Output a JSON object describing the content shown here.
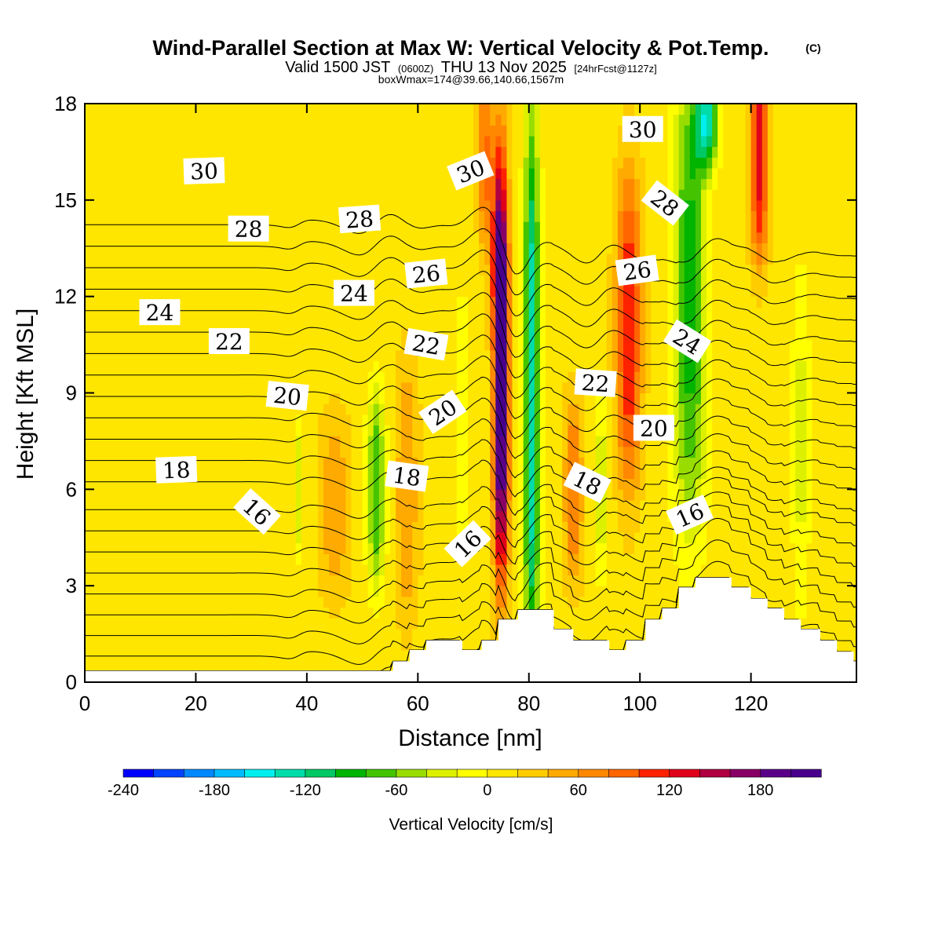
{
  "title": {
    "main": "Wind-Parallel Section at Max W: Vertical Velocity & Pot.Temp.",
    "copyright": "(C)",
    "valid_prefix": "Valid 1500 JST",
    "valid_utc": "(0600Z)",
    "valid_date": "THU 13 Nov 2025",
    "forecast": "[24hrFcst@1127z]",
    "box": "boxWmax=174@39.66,140.66,1567m"
  },
  "chart_data": {
    "type": "heatmap",
    "xlabel": "Distance [nm]",
    "ylabel": "Height [Kft MSL]",
    "xlim": [
      0,
      139
    ],
    "ylim": [
      0,
      18
    ],
    "x_ticks": [
      0,
      20,
      40,
      60,
      80,
      100,
      120
    ],
    "y_ticks": [
      0,
      3,
      6,
      9,
      12,
      15,
      18
    ],
    "colorbar": {
      "label": "Vertical Velocity [cm/s]",
      "min": -240,
      "max": 220,
      "step": 20,
      "tick_values": [
        -240,
        -180,
        -120,
        -60,
        0,
        60,
        120,
        180
      ],
      "tick_labels": [
        "-240",
        "-180",
        "-120",
        "-60",
        "0",
        "60",
        "120",
        "180"
      ],
      "colors": [
        "#0000ff",
        "#0044ff",
        "#0088ff",
        "#00bbff",
        "#00eeee",
        "#00dcaa",
        "#00c864",
        "#00b400",
        "#44c400",
        "#99dd00",
        "#ddf000",
        "#ffff00",
        "#ffe600",
        "#ffcc00",
        "#ffaa00",
        "#ff8800",
        "#ff6600",
        "#ff2200",
        "#e0001a",
        "#b00040",
        "#880066",
        "#5a0088",
        "#48008c"
      ]
    },
    "velocity_features": [
      {
        "x": 75,
        "z_center": 9.0,
        "z_half": 6.0,
        "width": 1.3,
        "peak": 220
      },
      {
        "x": 74.5,
        "z_center": 14.5,
        "z_half": 3.5,
        "width": 1.5,
        "peak": 80
      },
      {
        "x": 80.5,
        "z_center": 9.0,
        "z_half": 9.0,
        "width": 1.4,
        "peak": -150
      },
      {
        "x": 52.5,
        "z_center": 6.0,
        "z_half": 3.2,
        "width": 1.6,
        "peak": -90
      },
      {
        "x": 58,
        "z_center": 6.0,
        "z_half": 4.0,
        "width": 2.0,
        "peak": 50
      },
      {
        "x": 45,
        "z_center": 5.5,
        "z_half": 3.0,
        "width": 2.5,
        "peak": 45
      },
      {
        "x": 38.5,
        "z_center": 6.0,
        "z_half": 2.2,
        "width": 0.8,
        "peak": -50
      },
      {
        "x": 68,
        "z_center": 8.0,
        "z_half": 4.0,
        "width": 1.0,
        "peak": -40
      },
      {
        "x": 98,
        "z_center": 11.0,
        "z_half": 5.0,
        "width": 2.2,
        "peak": 110
      },
      {
        "x": 88,
        "z_center": 6.0,
        "z_half": 3.0,
        "width": 1.6,
        "peak": 70
      },
      {
        "x": 93,
        "z_center": 6.0,
        "z_half": 2.8,
        "width": 1.0,
        "peak": -50
      },
      {
        "x": 109,
        "z_center": 12.0,
        "z_half": 7.5,
        "width": 3.0,
        "peak": -100
      },
      {
        "x": 112,
        "z_center": 17.5,
        "z_half": 1.5,
        "width": 2.0,
        "peak": -130
      },
      {
        "x": 121.5,
        "z_center": 16.5,
        "z_half": 3.5,
        "width": 1.6,
        "peak": 120
      },
      {
        "x": 129,
        "z_center": 7.5,
        "z_half": 5.5,
        "width": 1.5,
        "peak": -40
      },
      {
        "x": 72,
        "z_center": 16.5,
        "z_half": 3.0,
        "width": 1.2,
        "peak": 70
      }
    ],
    "terrain": [
      [
        0,
        0.35
      ],
      [
        55,
        0.35
      ],
      [
        55.5,
        0.65
      ],
      [
        58,
        0.65
      ],
      [
        58.5,
        1.0
      ],
      [
        61,
        1.0
      ],
      [
        61.5,
        1.3
      ],
      [
        67,
        1.3
      ],
      [
        68,
        1.0
      ],
      [
        71,
        1.0
      ],
      [
        71.5,
        1.3
      ],
      [
        74,
        1.3
      ],
      [
        74.5,
        1.95
      ],
      [
        77.5,
        1.95
      ],
      [
        78,
        2.25
      ],
      [
        84,
        2.25
      ],
      [
        84.5,
        1.65
      ],
      [
        87.5,
        1.65
      ],
      [
        88,
        1.3
      ],
      [
        94,
        1.3
      ],
      [
        94.5,
        1.0
      ],
      [
        97,
        1.0
      ],
      [
        97.5,
        1.3
      ],
      [
        100.5,
        1.3
      ],
      [
        101,
        1.95
      ],
      [
        103.5,
        1.95
      ],
      [
        104,
        2.3
      ],
      [
        106.5,
        2.3
      ],
      [
        107,
        2.95
      ],
      [
        109.5,
        2.95
      ],
      [
        110,
        3.25
      ],
      [
        116,
        3.25
      ],
      [
        116.5,
        2.95
      ],
      [
        119.5,
        2.95
      ],
      [
        120,
        2.6
      ],
      [
        122.5,
        2.6
      ],
      [
        123,
        2.3
      ],
      [
        125.5,
        2.3
      ],
      [
        126,
        1.95
      ],
      [
        128.5,
        1.95
      ],
      [
        129,
        1.65
      ],
      [
        132,
        1.65
      ],
      [
        132.5,
        1.3
      ],
      [
        135,
        1.3
      ],
      [
        135.5,
        0.95
      ],
      [
        138,
        0.95
      ],
      [
        138.5,
        0.65
      ],
      [
        139,
        0.65
      ]
    ],
    "theta_contours": {
      "min": 10,
      "max": 33,
      "step": 1,
      "labels": [
        {
          "text": "30",
          "x": 21.5,
          "z": 15.9,
          "angle": -2
        },
        {
          "text": "30",
          "x": 69.5,
          "z": 15.9,
          "angle": -22
        },
        {
          "text": "30",
          "x": 100.5,
          "z": 17.2,
          "angle": 0
        },
        {
          "text": "28",
          "x": 29.5,
          "z": 14.1,
          "angle": 0
        },
        {
          "text": "28",
          "x": 49.5,
          "z": 14.4,
          "angle": -4
        },
        {
          "text": "28",
          "x": 104.5,
          "z": 14.9,
          "angle": 38
        },
        {
          "text": "26",
          "x": 61.5,
          "z": 12.7,
          "angle": -6
        },
        {
          "text": "26",
          "x": 99.5,
          "z": 12.8,
          "angle": -8
        },
        {
          "text": "24",
          "x": 13.5,
          "z": 11.5,
          "angle": 0
        },
        {
          "text": "24",
          "x": 48.5,
          "z": 12.1,
          "angle": 0
        },
        {
          "text": "24",
          "x": 108.5,
          "z": 10.6,
          "angle": 32
        },
        {
          "text": "22",
          "x": 26.0,
          "z": 10.6,
          "angle": 0
        },
        {
          "text": "22",
          "x": 61.5,
          "z": 10.5,
          "angle": 10
        },
        {
          "text": "22",
          "x": 92.0,
          "z": 9.3,
          "angle": 4
        },
        {
          "text": "20",
          "x": 36.5,
          "z": 8.9,
          "angle": 6
        },
        {
          "text": "20",
          "x": 64.5,
          "z": 8.4,
          "angle": -34
        },
        {
          "text": "20",
          "x": 102.5,
          "z": 7.9,
          "angle": 0
        },
        {
          "text": "18",
          "x": 16.5,
          "z": 6.6,
          "angle": -2
        },
        {
          "text": "18",
          "x": 58.0,
          "z": 6.4,
          "angle": 8
        },
        {
          "text": "18",
          "x": 90.5,
          "z": 6.2,
          "angle": 26
        },
        {
          "text": "16",
          "x": 31.0,
          "z": 5.3,
          "angle": 42
        },
        {
          "text": "16",
          "x": 69.0,
          "z": 4.3,
          "angle": -44
        },
        {
          "text": "16",
          "x": 109.0,
          "z": 5.2,
          "angle": -24
        }
      ]
    }
  }
}
